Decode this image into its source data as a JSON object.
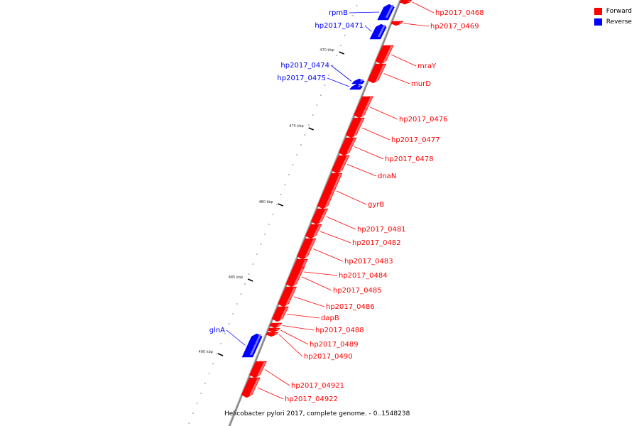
{
  "caption": "Helicobacter pylori 2017, complete genome. - 0..1548238",
  "legend": {
    "forward_label": "Forward",
    "reverse_label": "Reverse",
    "forward_color": "#ff0000",
    "reverse_color": "#0000ff"
  },
  "ticks": [
    {
      "label": "470 kbp"
    },
    {
      "label": "475 kbp"
    },
    {
      "label": "480 kbp"
    },
    {
      "label": "485 kbp"
    },
    {
      "label": "490 kbp"
    }
  ],
  "genes": [
    {
      "name": "rpmB",
      "strand": "reverse"
    },
    {
      "name": "hp2017_0468",
      "strand": "forward"
    },
    {
      "name": "hp2017_0471",
      "strand": "reverse"
    },
    {
      "name": "hp2017_0469",
      "strand": "forward"
    },
    {
      "name": "mraY",
      "strand": "forward"
    },
    {
      "name": "hp2017_0474",
      "strand": "reverse"
    },
    {
      "name": "hp2017_0475",
      "strand": "reverse"
    },
    {
      "name": "murD",
      "strand": "forward"
    },
    {
      "name": "hp2017_0476",
      "strand": "forward"
    },
    {
      "name": "hp2017_0477",
      "strand": "forward"
    },
    {
      "name": "hp2017_0478",
      "strand": "forward"
    },
    {
      "name": "dnaN",
      "strand": "forward"
    },
    {
      "name": "gyrB",
      "strand": "forward"
    },
    {
      "name": "hp2017_0481",
      "strand": "forward"
    },
    {
      "name": "hp2017_0482",
      "strand": "forward"
    },
    {
      "name": "hp2017_0483",
      "strand": "forward"
    },
    {
      "name": "hp2017_0484",
      "strand": "forward"
    },
    {
      "name": "hp2017_0485",
      "strand": "forward"
    },
    {
      "name": "hp2017_0486",
      "strand": "forward"
    },
    {
      "name": "dapB",
      "strand": "forward"
    },
    {
      "name": "hp2017_0488",
      "strand": "forward"
    },
    {
      "name": "glnA",
      "strand": "reverse"
    },
    {
      "name": "hp2017_0489",
      "strand": "forward"
    },
    {
      "name": "hp2017_0490",
      "strand": "forward"
    },
    {
      "name": "hp2017_04921",
      "strand": "forward"
    },
    {
      "name": "hp2017_04922",
      "strand": "forward"
    }
  ]
}
